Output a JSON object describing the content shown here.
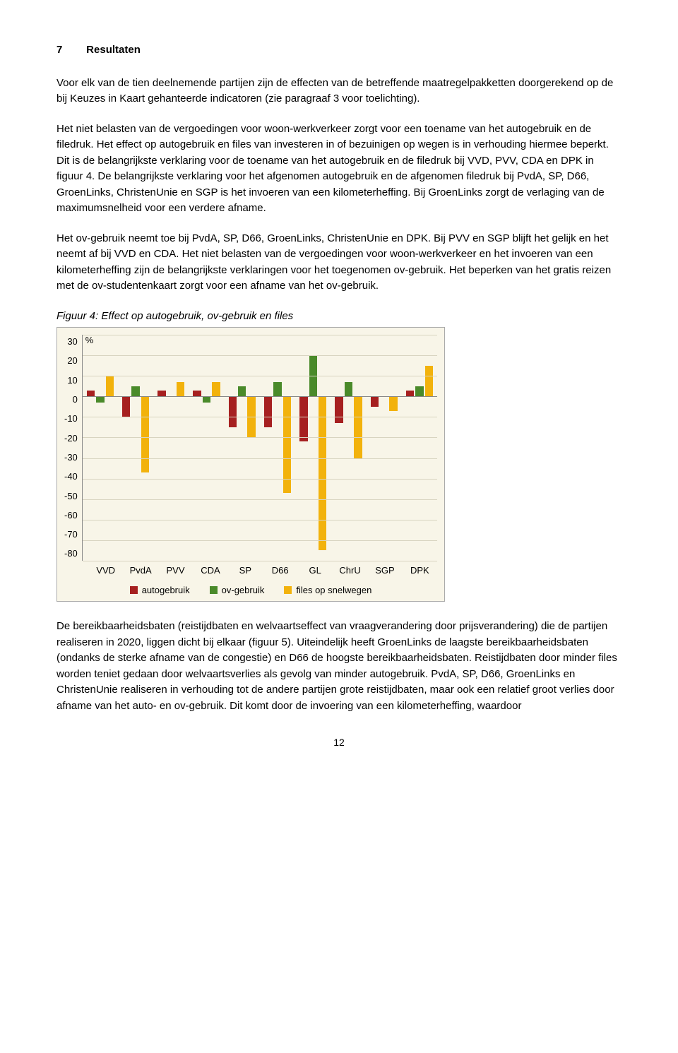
{
  "heading": {
    "number": "7",
    "title": "Resultaten"
  },
  "paragraphs": {
    "p1": "Voor elk van de tien deelnemende partijen zijn de effecten van de betreffende maatregelpakketten doorgerekend op de bij Keuzes in Kaart gehanteerde indicatoren (zie paragraaf 3 voor toelichting).",
    "p2": "Het niet belasten van de vergoedingen voor woon-werkverkeer zorgt voor een toename van het autogebruik en de filedruk. Het effect op autogebruik en files van investeren in of bezuinigen op wegen is in verhouding hiermee beperkt. Dit is de belangrijkste verklaring voor de toename van het autogebruik en de filedruk bij VVD, PVV, CDA en DPK in figuur 4. De belangrijkste verklaring voor het afgenomen autogebruik en de afgenomen filedruk bij PvdA, SP, D66, GroenLinks, ChristenUnie en SGP is het invoeren van een kilometerheffing. Bij GroenLinks zorgt de verlaging van de maximumsnelheid voor een verdere afname.",
    "p3": "Het ov-gebruik neemt toe bij PvdA, SP, D66, GroenLinks, ChristenUnie en DPK. Bij PVV en SGP blijft het gelijk en het neemt af bij VVD en CDA. Het niet belasten van de vergoedingen voor woon-werkverkeer en het invoeren van een kilometerheffing zijn de belangrijkste verklaringen voor het toegenomen ov-gebruik. Het beperken van het gratis reizen met de ov-studentenkaart zorgt voor een afname van het ov-gebruik.",
    "p4": "De bereikbaarheidsbaten (reistijdbaten en welvaartseffect van vraagverandering door prijsverandering) die de partijen realiseren in 2020, liggen dicht bij elkaar (figuur 5). Uiteindelijk heeft GroenLinks de laagste bereikbaarheidsbaten (ondanks de sterke afname van de congestie) en D66 de hoogste bereikbaarheidsbaten. Reistijdbaten door minder files worden teniet gedaan door welvaartsverlies als gevolg van minder autogebruik. PvdA, SP, D66, GroenLinks en ChristenUnie realiseren in verhouding tot de andere partijen grote reistijdbaten, maar ook een relatief groot verlies door afname van het auto- en ov-gebruik. Dit komt door de invoering van een kilometerheffing, waardoor"
  },
  "figure": {
    "caption": "Figuur 4: Effect op autogebruik, ov-gebruik en files",
    "unit_label": "%",
    "ymin": -80,
    "ymax": 30,
    "ytick_step": 10,
    "yticks": [
      "30",
      "20",
      "10",
      "0",
      "-10",
      "-20",
      "-30",
      "-40",
      "-50",
      "-60",
      "-70",
      "-80"
    ],
    "categories": [
      "VVD",
      "PvdA",
      "PVV",
      "CDA",
      "SP",
      "D66",
      "GL",
      "ChrU",
      "SGP",
      "DPK"
    ],
    "series": [
      {
        "key": "autogebruik",
        "label": "autogebruik",
        "color": "#a62020",
        "values": [
          3,
          -10,
          3,
          3,
          -15,
          -15,
          -22,
          -13,
          -5,
          3
        ]
      },
      {
        "key": "ovgebruik",
        "label": "ov-gebruik",
        "color": "#4a8a2a",
        "values": [
          -3,
          5,
          0,
          -3,
          5,
          7,
          20,
          7,
          0,
          5
        ]
      },
      {
        "key": "files",
        "label": "files op snelwegen",
        "color": "#f2b20c",
        "values": [
          10,
          -37,
          7,
          7,
          -20,
          -47,
          -75,
          -30,
          -7,
          15
        ]
      }
    ],
    "background_color": "#f8f5e8",
    "grid_color": "#d8d4c0",
    "axis_color": "#888888",
    "label_fontsize": 13
  },
  "page_number": "12"
}
